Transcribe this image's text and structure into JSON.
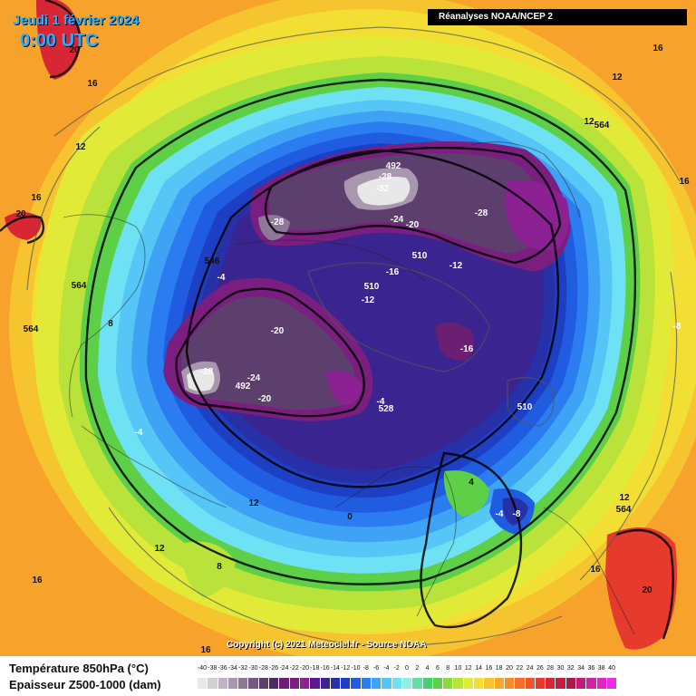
{
  "header": {
    "date": "Jeudi 1 février 2024",
    "time": "0:00 UTC",
    "source_box": "Réanalyses NOAA/NCEP 2"
  },
  "copyright": "Copyright (c) 2021 Meteociel.fr - Source NOAA",
  "legend": {
    "title_temp": "Température 850hPa (°C)",
    "title_thickness": "Epaisseur Z500-1000 (dam)",
    "scale_values": [
      "-40",
      "-38",
      "-36",
      "-34",
      "-32",
      "-30",
      "-28",
      "-26",
      "-24",
      "-22",
      "-20",
      "-18",
      "-16",
      "-14",
      "-12",
      "-10",
      "-8",
      "-6",
      "-4",
      "-2",
      "0",
      "2",
      "4",
      "6",
      "8",
      "10",
      "12",
      "14",
      "16",
      "18",
      "20",
      "22",
      "24",
      "26",
      "28",
      "30",
      "32",
      "34",
      "36",
      "38",
      "40"
    ],
    "scale_colors": [
      "#e8e8e8",
      "#d4cfd6",
      "#bfb3c3",
      "#a897ae",
      "#8e7897",
      "#745a82",
      "#5d3f6e",
      "#4e2a60",
      "#6a1f72",
      "#7a1f80",
      "#8b2192",
      "#5a1a8f",
      "#3a2490",
      "#2730a6",
      "#1d3fc4",
      "#1f5ce0",
      "#2a7cf0",
      "#3ea3f4",
      "#56c6f6",
      "#6ee2f4",
      "#8ff0e2",
      "#5fe0a8",
      "#45cf70",
      "#5ed048",
      "#8ada3e",
      "#b9e23a",
      "#e2ea38",
      "#f3df33",
      "#f6c42e",
      "#f7a82a",
      "#f58c28",
      "#f27027",
      "#ee5529",
      "#e53a2c",
      "#d82634",
      "#c41d3f",
      "#a81b4a",
      "#c21b7a",
      "#d81ea5",
      "#e123c8",
      "#ea2ee4"
    ]
  },
  "contour_labels": [
    {
      "text": "20",
      "tone": "dark"
    },
    {
      "text": "16",
      "tone": "dark"
    },
    {
      "text": "12",
      "tone": "dark"
    },
    {
      "text": "16",
      "tone": "dark"
    },
    {
      "text": "20",
      "tone": "dark"
    },
    {
      "text": "12",
      "tone": "dark"
    },
    {
      "text": "12",
      "tone": "dark"
    },
    {
      "text": "564",
      "tone": "dark"
    },
    {
      "text": "16",
      "tone": "dark"
    },
    {
      "text": "16",
      "tone": "dark"
    },
    {
      "text": "-28",
      "tone": "light"
    },
    {
      "text": "-32",
      "tone": "light"
    },
    {
      "text": "492",
      "tone": "light"
    },
    {
      "text": "-24",
      "tone": "light"
    },
    {
      "text": "-20",
      "tone": "light"
    },
    {
      "text": "-28",
      "tone": "light"
    },
    {
      "text": "-28",
      "tone": "light"
    },
    {
      "text": "-16",
      "tone": "light"
    },
    {
      "text": "510",
      "tone": "light"
    },
    {
      "text": "-12",
      "tone": "light"
    },
    {
      "text": "510",
      "tone": "light"
    },
    {
      "text": "-12",
      "tone": "light"
    },
    {
      "text": "-4",
      "tone": "light"
    },
    {
      "text": "546",
      "tone": "dark"
    },
    {
      "text": "564",
      "tone": "dark"
    },
    {
      "text": "564",
      "tone": "dark"
    },
    {
      "text": "-8",
      "tone": "light"
    },
    {
      "text": "-20",
      "tone": "light"
    },
    {
      "text": "-16",
      "tone": "light"
    },
    {
      "text": "8",
      "tone": "dark"
    },
    {
      "text": "-28",
      "tone": "light"
    },
    {
      "text": "-24",
      "tone": "light"
    },
    {
      "text": "492",
      "tone": "light"
    },
    {
      "text": "-20",
      "tone": "light"
    },
    {
      "text": "528",
      "tone": "light"
    },
    {
      "text": "510",
      "tone": "light"
    },
    {
      "text": "-4",
      "tone": "light"
    },
    {
      "text": "-4",
      "tone": "light"
    },
    {
      "text": "12",
      "tone": "dark"
    },
    {
      "text": "0",
      "tone": "dark"
    },
    {
      "text": "4",
      "tone": "dark"
    },
    {
      "text": "-4",
      "tone": "light"
    },
    {
      "text": "-8",
      "tone": "light"
    },
    {
      "text": "12",
      "tone": "dark"
    },
    {
      "text": "564",
      "tone": "dark"
    },
    {
      "text": "12",
      "tone": "dark"
    },
    {
      "text": "8",
      "tone": "dark"
    },
    {
      "text": "16",
      "tone": "dark"
    },
    {
      "text": "16",
      "tone": "dark"
    },
    {
      "text": "20",
      "tone": "dark"
    },
    {
      "text": "16",
      "tone": "dark"
    }
  ]
}
